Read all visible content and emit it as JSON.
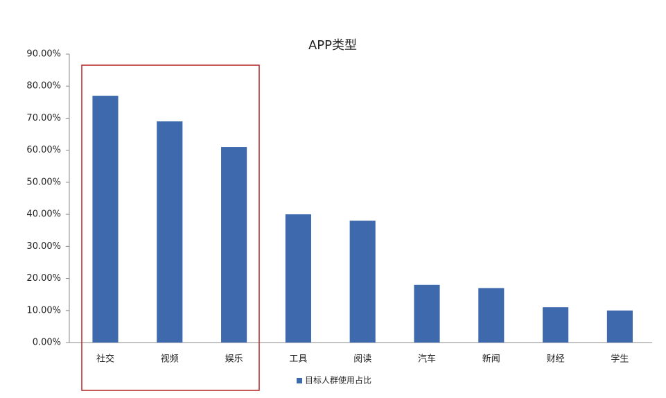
{
  "chart_data": {
    "type": "bar",
    "title": "APP类型",
    "categories": [
      "社交",
      "视频",
      "娱乐",
      "工具",
      "阅读",
      "汽车",
      "新闻",
      "财经",
      "学生"
    ],
    "series": [
      {
        "name": "目标人群使用占比",
        "color": "#3e6aad",
        "values": [
          77,
          69,
          61,
          40,
          38,
          18,
          17,
          11,
          10
        ]
      }
    ],
    "ylim": [
      0,
      90
    ],
    "yticks": [
      {
        "value": 0,
        "label": "0.00%"
      },
      {
        "value": 10,
        "label": "10.00%"
      },
      {
        "value": 20,
        "label": "20.00%"
      },
      {
        "value": 30,
        "label": "30.00%"
      },
      {
        "value": 40,
        "label": "40.00%"
      },
      {
        "value": 50,
        "label": "50.00%"
      },
      {
        "value": 60,
        "label": "60.00%"
      },
      {
        "value": 70,
        "label": "70.00%"
      },
      {
        "value": 80,
        "label": "80.00%"
      },
      {
        "value": 90,
        "label": "90.00%"
      }
    ],
    "grid": false,
    "legend": "bottom"
  }
}
